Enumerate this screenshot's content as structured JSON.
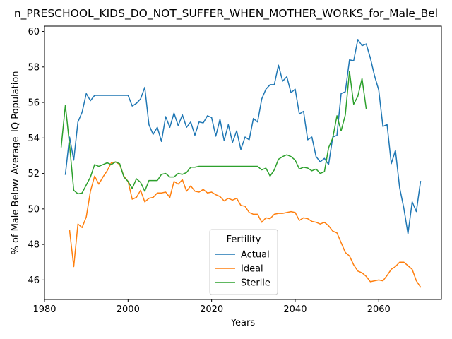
{
  "chart_data": {
    "type": "line",
    "title": "n_PRESCHOOL_KIDS_DO_NOT_SUFFER_WHEN_MOTHER_WORKS_for_Male_Bel",
    "xlabel": "Years",
    "ylabel": "% of Male Below_Average_IQ Population",
    "xlim": [
      1980,
      2075
    ],
    "ylim": [
      44.9,
      60.3
    ],
    "xticks": [
      1980,
      2000,
      2020,
      2040,
      2060
    ],
    "yticks": [
      46,
      48,
      50,
      52,
      54,
      56,
      58,
      60
    ],
    "grid": false,
    "legend": {
      "title": "Fertility",
      "placement": "lower center"
    },
    "series": [
      {
        "name": "Actual",
        "color": "#1f77b4",
        "x": [
          1985,
          1986,
          1987,
          1988,
          1989,
          1990,
          1991,
          1992,
          1993,
          1994,
          1995,
          1996,
          1997,
          1998,
          1999,
          2000,
          2001,
          2002,
          2003,
          2004,
          2005,
          2006,
          2007,
          2008,
          2009,
          2010,
          2011,
          2012,
          2013,
          2014,
          2015,
          2016,
          2017,
          2018,
          2019,
          2020,
          2021,
          2022,
          2023,
          2024,
          2025,
          2026,
          2027,
          2028,
          2029,
          2030,
          2031,
          2032,
          2033,
          2034,
          2035,
          2036,
          2037,
          2038,
          2039,
          2040,
          2041,
          2042,
          2043,
          2044,
          2045,
          2046,
          2047,
          2048,
          2049,
          2050,
          2051,
          2052,
          2053,
          2054,
          2055,
          2056,
          2057,
          2058,
          2059,
          2060,
          2061,
          2062,
          2063,
          2064,
          2065,
          2066,
          2067,
          2068,
          2069,
          2070
        ],
        "values": [
          51.95,
          54.05,
          52.75,
          54.9,
          55.45,
          56.5,
          56.1,
          56.4,
          56.4,
          56.4,
          56.4,
          56.4,
          56.4,
          56.4,
          56.4,
          56.4,
          55.8,
          55.95,
          56.2,
          56.85,
          54.75,
          54.2,
          54.6,
          53.8,
          55.2,
          54.6,
          55.4,
          54.7,
          55.3,
          54.6,
          54.9,
          54.15,
          54.9,
          54.85,
          55.25,
          55.15,
          54.1,
          55.05,
          53.85,
          54.75,
          53.75,
          54.4,
          53.35,
          54.05,
          53.9,
          55.1,
          54.9,
          56.2,
          56.75,
          57.0,
          57.0,
          58.1,
          57.2,
          57.45,
          56.55,
          56.75,
          55.35,
          55.5,
          53.9,
          54.05,
          52.95,
          52.65,
          52.85,
          52.5,
          54.05,
          54.15,
          56.5,
          56.6,
          58.4,
          58.35,
          59.55,
          59.2,
          59.3,
          58.5,
          57.5,
          56.7,
          54.65,
          54.75,
          52.55,
          53.3,
          51.2,
          50.05,
          48.6,
          50.4,
          49.85,
          51.55
        ]
      },
      {
        "name": "Ideal",
        "color": "#ff7f0e",
        "x": [
          1986,
          1987,
          1988,
          1989,
          1990,
          1991,
          1992,
          1993,
          1994,
          1995,
          1996,
          1997,
          1998,
          1999,
          2000,
          2001,
          2002,
          2003,
          2004,
          2005,
          2006,
          2007,
          2008,
          2009,
          2010,
          2011,
          2012,
          2013,
          2014,
          2015,
          2016,
          2017,
          2018,
          2019,
          2020,
          2021,
          2022,
          2023,
          2024,
          2025,
          2026,
          2027,
          2028,
          2029,
          2030,
          2031,
          2032,
          2033,
          2034,
          2035,
          2036,
          2037,
          2038,
          2039,
          2040,
          2041,
          2042,
          2043,
          2044,
          2045,
          2046,
          2047,
          2048,
          2049,
          2050,
          2051,
          2052,
          2053,
          2054,
          2055,
          2056,
          2057,
          2058,
          2059,
          2060,
          2061,
          2062,
          2063,
          2064,
          2065,
          2066,
          2067,
          2068,
          2069,
          2070
        ],
        "values": [
          48.8,
          46.75,
          49.15,
          48.95,
          49.55,
          51.0,
          51.85,
          51.4,
          51.8,
          52.15,
          52.6,
          52.65,
          52.5,
          51.85,
          51.55,
          50.55,
          50.65,
          51.05,
          50.4,
          50.6,
          50.65,
          50.9,
          50.9,
          50.95,
          50.65,
          51.55,
          51.4,
          51.65,
          51.0,
          51.3,
          51.0,
          50.95,
          51.1,
          50.9,
          50.95,
          50.8,
          50.7,
          50.45,
          50.6,
          50.5,
          50.6,
          50.2,
          50.15,
          49.8,
          49.7,
          49.7,
          49.25,
          49.5,
          49.45,
          49.7,
          49.75,
          49.75,
          49.8,
          49.85,
          49.8,
          49.35,
          49.5,
          49.45,
          49.3,
          49.25,
          49.15,
          49.25,
          49.05,
          48.75,
          48.65,
          48.1,
          47.55,
          47.35,
          46.85,
          46.5,
          46.4,
          46.2,
          45.9,
          45.95,
          46.0,
          45.95,
          46.25,
          46.6,
          46.75,
          47.0,
          47.0,
          46.8,
          46.6,
          45.95,
          45.6
        ]
      },
      {
        "name": "Sterile",
        "color": "#2ca02c",
        "x": [
          1984,
          1985,
          1986,
          1987,
          1988,
          1989,
          1990,
          1991,
          1992,
          1993,
          1994,
          1995,
          1996,
          1997,
          1998,
          1999,
          2000,
          2001,
          2002,
          2003,
          2004,
          2005,
          2006,
          2007,
          2008,
          2009,
          2010,
          2011,
          2012,
          2013,
          2014,
          2015,
          2016,
          2017,
          2018,
          2019,
          2020,
          2021,
          2022,
          2023,
          2024,
          2025,
          2026,
          2027,
          2028,
          2029,
          2030,
          2031,
          2032,
          2033,
          2034,
          2035,
          2036,
          2037,
          2038,
          2039,
          2040,
          2041,
          2042,
          2043,
          2044,
          2045,
          2046,
          2047,
          2048,
          2049,
          2050,
          2051,
          2052,
          2053,
          2054,
          2055,
          2056,
          2057
        ],
        "values": [
          53.5,
          55.85,
          53.6,
          51.05,
          50.85,
          50.9,
          51.35,
          51.8,
          52.5,
          52.4,
          52.5,
          52.6,
          52.5,
          52.65,
          52.55,
          51.8,
          51.55,
          51.15,
          51.7,
          51.5,
          51.0,
          51.6,
          51.6,
          51.6,
          51.95,
          52.0,
          51.8,
          51.8,
          52.0,
          51.95,
          52.05,
          52.35,
          52.35,
          52.4,
          52.4,
          52.4,
          52.4,
          52.4,
          52.4,
          52.4,
          52.4,
          52.4,
          52.4,
          52.4,
          52.4,
          52.4,
          52.4,
          52.4,
          52.2,
          52.3,
          51.85,
          52.2,
          52.8,
          52.95,
          53.05,
          52.95,
          52.75,
          52.25,
          52.35,
          52.3,
          52.15,
          52.25,
          52.0,
          52.1,
          53.45,
          54.0,
          55.25,
          54.4,
          55.3,
          57.75,
          55.9,
          56.35,
          57.35,
          55.65
        ]
      }
    ]
  }
}
